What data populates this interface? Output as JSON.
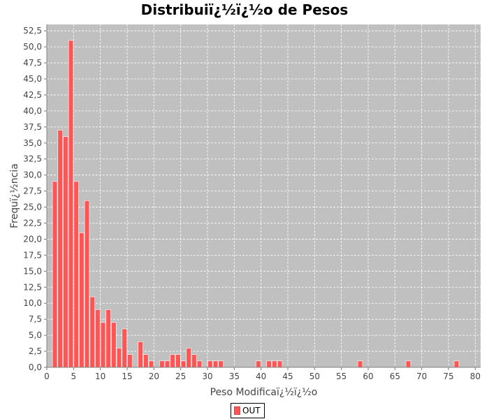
{
  "chart_data": {
    "type": "bar",
    "title": "Distribuiï¿½ï¿½o de Pesos",
    "xlabel": "Peso Modificaï¿½ï¿½o",
    "ylabel": "Frequï¿½ncia",
    "xlim": [
      0,
      81
    ],
    "ylim": [
      0,
      53.5
    ],
    "x_ticks": [
      0,
      5,
      10,
      15,
      20,
      25,
      30,
      35,
      40,
      45,
      50,
      55,
      60,
      65,
      70,
      75,
      80
    ],
    "y_ticks": [
      "0,0",
      "2,5",
      "5,0",
      "7,5",
      "10,0",
      "12,5",
      "15,0",
      "17,5",
      "20,0",
      "22,5",
      "25,0",
      "27,5",
      "30,0",
      "32,5",
      "35,0",
      "37,5",
      "40,0",
      "42,5",
      "45,0",
      "47,5",
      "50,0",
      "52,5"
    ],
    "grid": true,
    "legend_position": "bottom",
    "series": [
      {
        "name": "OUT",
        "color": "#ff5555",
        "x": [
          1.5,
          2.5,
          3.5,
          4.5,
          5.5,
          6.5,
          7.5,
          8.5,
          9.5,
          10.5,
          11.5,
          12.5,
          13.5,
          14.5,
          15.5,
          17.5,
          18.5,
          19.5,
          21.5,
          22.5,
          23.5,
          24.5,
          25.5,
          26.5,
          27.5,
          28.5,
          30.5,
          31.5,
          32.5,
          39.5,
          41.5,
          42.5,
          43.5,
          58.5,
          67.5,
          76.5
        ],
        "values": [
          29,
          37,
          36,
          51,
          29,
          21,
          26,
          11,
          9,
          7,
          9,
          7,
          3,
          6,
          2,
          4,
          2,
          1,
          1,
          1,
          2,
          2,
          1,
          3,
          2,
          1,
          1,
          1,
          1,
          1,
          1,
          1,
          1,
          1,
          1,
          1
        ]
      }
    ]
  }
}
